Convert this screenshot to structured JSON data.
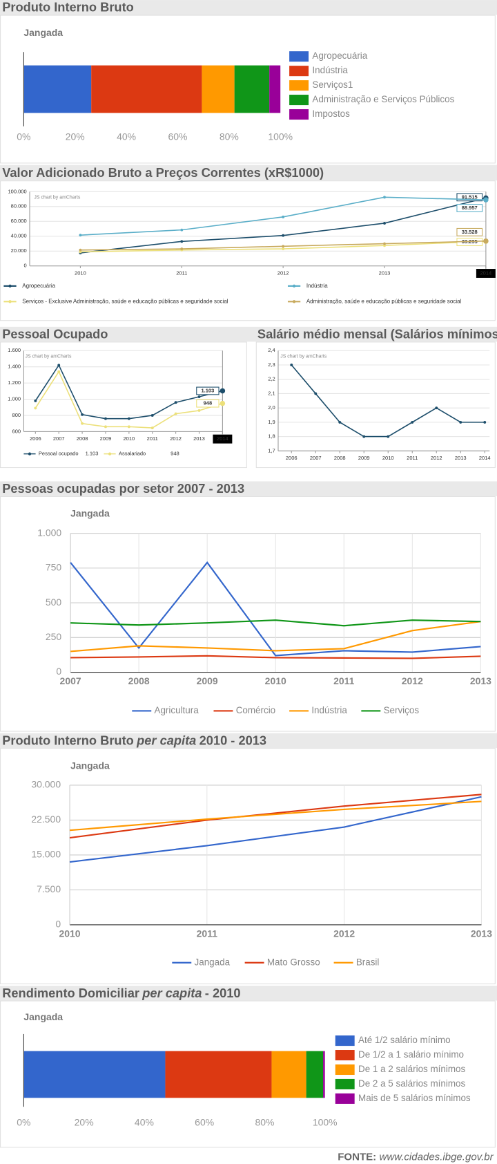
{
  "chart_data": [
    {
      "type": "bar",
      "horizontal": true,
      "stacked": true,
      "title": "Produto Interno Bruto",
      "subtitle": "Jangada",
      "xlim": [
        0,
        100
      ],
      "xticks": [
        {
          "value": 0,
          "label": "0%"
        },
        {
          "value": 20,
          "label": "20%"
        },
        {
          "value": 40,
          "label": "40%"
        },
        {
          "value": 60,
          "label": "60%"
        },
        {
          "value": 80,
          "label": "80%"
        },
        {
          "value": 100,
          "label": "100%"
        }
      ],
      "series": [
        {
          "name": "Agropecuária",
          "color": "#3366cc",
          "values": [
            26.3
          ]
        },
        {
          "name": "Indústria",
          "color": "#dc3912",
          "values": [
            43.1
          ]
        },
        {
          "name": "Serviços1",
          "color": "#ff9900",
          "values": [
            12.7
          ]
        },
        {
          "name": "Administração e Serviços Públicos",
          "color": "#109618",
          "values": [
            13.6
          ]
        },
        {
          "name": "Impostos",
          "color": "#990099",
          "values": [
            4.3
          ]
        }
      ]
    },
    {
      "type": "line",
      "title": "Valor Adicionado Bruto a Preços Correntes (xR$1000)",
      "credit": "JS chart by amCharts",
      "x": [
        2010,
        2011,
        2012,
        2013,
        2014
      ],
      "xlim": [
        2009.5,
        2014
      ],
      "xticks": [
        2010,
        2011,
        2012,
        2013,
        2014
      ],
      "highlight_x": 2014,
      "ylim": [
        0,
        100000
      ],
      "yticks": [
        0,
        {
          "value": 20000,
          "label": "20.000"
        },
        {
          "value": 40000,
          "label": "40.000"
        },
        {
          "value": 60000,
          "label": "60.000"
        },
        {
          "value": 80000,
          "label": "80.000"
        },
        {
          "value": 100000,
          "label": "100.000"
        }
      ],
      "grid": true,
      "markers": true,
      "series": [
        {
          "name": "Agropecuária",
          "color": "#1d4e6b",
          "values": [
            17500,
            33000,
            41000,
            57500,
            91515
          ],
          "value_labels": [
            null,
            null,
            null,
            null,
            "91.515"
          ]
        },
        {
          "name": "Indústria",
          "color": "#5aaec8",
          "values": [
            41500,
            48500,
            66000,
            92500,
            88957
          ],
          "value_labels": [
            null,
            null,
            null,
            null,
            "88.957"
          ]
        },
        {
          "name": "Serviços - Exclusive Administração, saúde e educação públicas e seguridade social",
          "color": "#ece07a",
          "values": [
            19000,
            21500,
            23000,
            27500,
            33235
          ],
          "value_labels": [
            null,
            null,
            null,
            null,
            "33.235"
          ]
        },
        {
          "name": "Administração, saúde e educação públicas e seguridade social",
          "color": "#c8aa5e",
          "values": [
            21500,
            23000,
            26500,
            30000,
            33528
          ],
          "value_labels": [
            null,
            null,
            null,
            null,
            "33.528"
          ]
        }
      ]
    },
    {
      "type": "line",
      "title": "Pessoal Ocupado",
      "credit": "JS chart by amCharts",
      "x": [
        2006,
        2007,
        2008,
        2009,
        2010,
        2011,
        2012,
        2013,
        2014
      ],
      "xlim": [
        2005.5,
        2014
      ],
      "xticks": [
        2006,
        2007,
        2008,
        2009,
        2010,
        2011,
        2012,
        2013,
        2014
      ],
      "highlight_x": 2014,
      "ylim": [
        600,
        1600
      ],
      "yticks": [
        600,
        800,
        {
          "value": 1000,
          "label": "1.000"
        },
        {
          "value": 1200,
          "label": "1.200"
        },
        {
          "value": 1400,
          "label": "1.400"
        },
        {
          "value": 1600,
          "label": "1.600"
        }
      ],
      "grid": true,
      "markers": true,
      "series": [
        {
          "name": "Pessoal ocupado",
          "color": "#1d4e6b",
          "values": [
            980,
            1420,
            810,
            760,
            760,
            800,
            960,
            1030,
            1103
          ],
          "value_labels": [
            null,
            null,
            null,
            null,
            null,
            null,
            null,
            null,
            "1.103"
          ]
        },
        {
          "name": "Assalariado",
          "color": "#ece07a",
          "values": [
            890,
            1340,
            700,
            660,
            660,
            645,
            820,
            860,
            948
          ],
          "value_labels": [
            null,
            null,
            null,
            null,
            null,
            null,
            null,
            null,
            "948"
          ]
        }
      ]
    },
    {
      "type": "line",
      "title": "Salário médio mensal (Salários mínimos)",
      "credit": "JS chart by amCharts",
      "x": [
        2006,
        2007,
        2008,
        2009,
        2010,
        2011,
        2012,
        2013,
        2014
      ],
      "xlim": [
        2005.45,
        2014.2
      ],
      "xticks": [
        2006,
        2007,
        2008,
        2009,
        2010,
        2011,
        2012,
        2013,
        2014
      ],
      "ylim": [
        1.7,
        2.4
      ],
      "yticks": [
        {
          "value": 1.7,
          "label": "1,7"
        },
        {
          "value": 1.8,
          "label": "1,8"
        },
        {
          "value": 1.9,
          "label": "1,9"
        },
        {
          "value": 2.0,
          "label": "2,0"
        },
        {
          "value": 2.1,
          "label": "2,1"
        },
        {
          "value": 2.2,
          "label": "2,2"
        },
        {
          "value": 2.3,
          "label": "2,3"
        },
        {
          "value": 2.4,
          "label": "2,4"
        }
      ],
      "grid": true,
      "markers": true,
      "series": [
        {
          "color": "#1d4e6b",
          "values": [
            2.3,
            2.1,
            1.9,
            1.8,
            1.8,
            1.9,
            2.0,
            1.9,
            1.9
          ]
        }
      ]
    },
    {
      "type": "line",
      "title": "Pessoas ocupadas por setor 2007 - 2013",
      "subtitle": "Jangada",
      "x": [
        2007,
        2008,
        2009,
        2010,
        2011,
        2012,
        2013
      ],
      "xlim": [
        2007,
        2013
      ],
      "xticks": [
        2007,
        2008,
        2009,
        2010,
        2011,
        2012,
        2013
      ],
      "ylim": [
        0,
        1000
      ],
      "yticks": [
        0,
        250,
        500,
        750,
        {
          "value": 1000,
          "label": "1.000"
        }
      ],
      "grid": true,
      "xgrid": true,
      "series": [
        {
          "name": "Agricultura",
          "color": "#3366cc",
          "values": [
            790,
            175,
            790,
            120,
            155,
            145,
            185
          ]
        },
        {
          "name": "Comércio",
          "color": "#dc3912",
          "values": [
            105,
            110,
            118,
            105,
            103,
            100,
            115
          ]
        },
        {
          "name": "Indústria",
          "color": "#ff9900",
          "values": [
            150,
            190,
            175,
            155,
            170,
            300,
            365
          ]
        },
        {
          "name": "Serviços",
          "color": "#109618",
          "values": [
            355,
            340,
            355,
            375,
            335,
            375,
            365
          ]
        }
      ]
    },
    {
      "type": "line",
      "title": [
        "Produto Interno Bruto",
        "per capita",
        "2010 - 2013"
      ],
      "subtitle": "Jangada",
      "x": [
        2010,
        2011,
        2012,
        2013
      ],
      "xlim": [
        2010,
        2013
      ],
      "xticks": [
        2010,
        2011,
        2012,
        2013
      ],
      "ylim": [
        0,
        30000
      ],
      "yticks": [
        0,
        {
          "value": 7500,
          "label": "7.500"
        },
        {
          "value": 15000,
          "label": "15.000"
        },
        {
          "value": 22500,
          "label": "22.500"
        },
        {
          "value": 30000,
          "label": "30.000"
        }
      ],
      "grid": true,
      "xgrid": true,
      "series": [
        {
          "name": "Jangada",
          "color": "#3366cc",
          "values": [
            13500,
            17000,
            21000,
            27500
          ]
        },
        {
          "name": "Mato Grosso",
          "color": "#dc3912",
          "values": [
            18700,
            22500,
            25500,
            28000
          ]
        },
        {
          "name": "Brasil",
          "color": "#ff9900",
          "values": [
            20300,
            22700,
            24800,
            26500
          ]
        }
      ]
    },
    {
      "type": "bar",
      "horizontal": true,
      "stacked": true,
      "title": [
        "Rendimento Domiciliar",
        "per capita",
        "- 2010"
      ],
      "subtitle": "Jangada",
      "xlim": [
        0,
        100
      ],
      "xticks": [
        {
          "value": 0,
          "label": "0%"
        },
        {
          "value": 20,
          "label": "20%"
        },
        {
          "value": 40,
          "label": "40%"
        },
        {
          "value": 60,
          "label": "60%"
        },
        {
          "value": 80,
          "label": "80%"
        },
        {
          "value": 100,
          "label": "100%"
        }
      ],
      "series": [
        {
          "name": "Até 1/2 salário mínimo",
          "color": "#3366cc",
          "values": [
            47.0
          ]
        },
        {
          "name": "De 1/2 a 1 salário mínimo",
          "color": "#dc3912",
          "values": [
            35.3
          ]
        },
        {
          "name": "De 1 a 2 salários mínimos",
          "color": "#ff9900",
          "values": [
            11.5
          ]
        },
        {
          "name": "De 2 a 5 salários mínimos",
          "color": "#109618",
          "values": [
            5.6
          ]
        },
        {
          "name": "Mais de 5 salários mínimos",
          "color": "#990099",
          "values": [
            0.6
          ]
        }
      ]
    }
  ],
  "footer": [
    "FONTE:",
    "www.cidades.ibge.gov.br"
  ]
}
